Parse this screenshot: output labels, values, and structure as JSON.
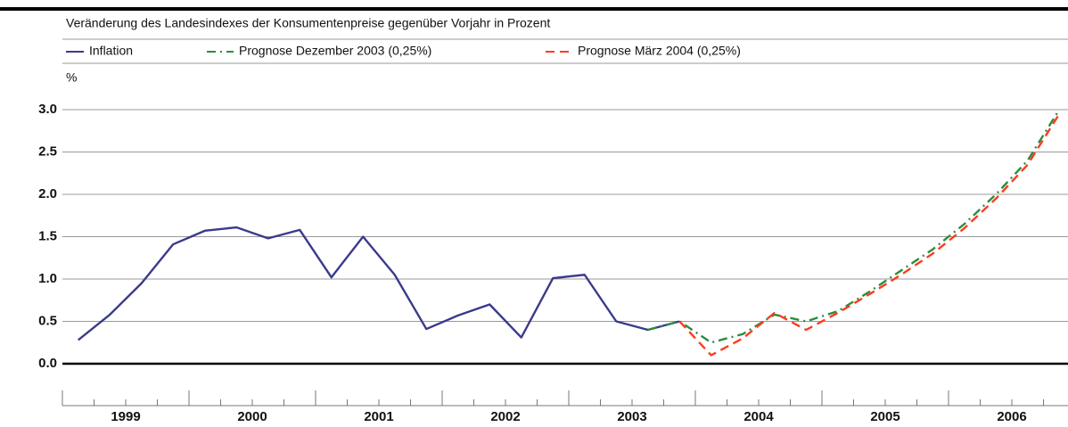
{
  "chart_data": {
    "type": "line",
    "subtitle": "Veränderung des Landesindexes der Konsumentenpreise gegenüber Vorjahr in Prozent",
    "ylabel": "%",
    "categories": [
      "1999",
      "2000",
      "2001",
      "2002",
      "2003",
      "2004",
      "2005",
      "2006"
    ],
    "xlim": [
      1999,
      2007
    ],
    "ylim": [
      0,
      3.05
    ],
    "yticks": [
      {
        "value": 0,
        "label": "0.0"
      },
      0.5,
      {
        "value": 1,
        "label": "1.0"
      },
      1.5,
      {
        "value": 2,
        "label": "2.0"
      },
      2.5,
      {
        "value": 3,
        "label": "3.0"
      }
    ],
    "grid": true,
    "series": [
      {
        "name": "Inflation",
        "color": "#3a3a8c",
        "linestyle": "solid",
        "x": [
          1999.125,
          1999.375,
          1999.625,
          1999.875,
          2000.125,
          2000.375,
          2000.625,
          2000.875,
          2001.125,
          2001.375,
          2001.625,
          2001.875,
          2002.125,
          2002.375,
          2002.625,
          2002.875,
          2003.125,
          2003.375,
          2003.625,
          2003.875
        ],
        "values": [
          0.28,
          0.58,
          0.95,
          1.41,
          1.57,
          1.61,
          1.48,
          1.58,
          1.02,
          1.5,
          1.05,
          0.41,
          0.57,
          0.7,
          0.31,
          1.01,
          1.05,
          0.5,
          0.4,
          0.5
        ]
      },
      {
        "name": "Prognose Dezember 2003 (0,25%)",
        "color": "#2e8b3e",
        "linestyle": "dash-dot",
        "x": [
          2003.625,
          2003.875,
          2004.125,
          2004.375,
          2004.625,
          2004.875,
          2005.125,
          2005.375,
          2005.625,
          2005.875,
          2006.125,
          2006.375,
          2006.625,
          2006.875
        ],
        "values": [
          0.4,
          0.5,
          0.25,
          0.35,
          0.58,
          0.5,
          0.62,
          0.85,
          1.1,
          1.35,
          1.65,
          2.0,
          2.4,
          3.0
        ]
      },
      {
        "name": "Prognose März 2004 (0,25%)",
        "color": "#ff3b1f",
        "linestyle": "dashed",
        "x": [
          2003.875,
          2004.125,
          2004.375,
          2004.625,
          2004.875,
          2005.125,
          2005.375,
          2005.625,
          2005.875,
          2006.125,
          2006.375,
          2006.625,
          2006.875
        ],
        "values": [
          0.5,
          0.1,
          0.3,
          0.6,
          0.4,
          0.6,
          0.82,
          1.05,
          1.3,
          1.6,
          1.95,
          2.35,
          2.95
        ]
      }
    ]
  }
}
